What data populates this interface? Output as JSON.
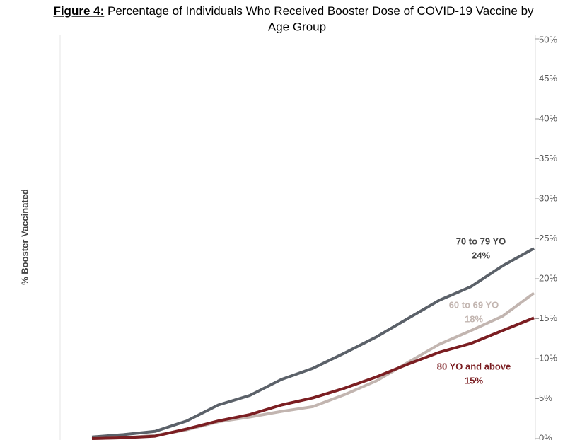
{
  "chart_data": {
    "type": "line",
    "figure_label": "Figure 4:",
    "title": "Percentage of Individuals Who Received Booster Dose of COVID-19 Vaccine by",
    "title_line2": "Age Group",
    "y_label": "% Booster Vaccinated",
    "categories": [
      null,
      null,
      null,
      null,
      null,
      null,
      null,
      null,
      null,
      null,
      null,
      null,
      null,
      null,
      null
    ],
    "series": [
      {
        "name": "70 to 79 YO",
        "color": "#5b6169",
        "values": [
          0.2,
          0.5,
          0.9,
          2.2,
          4.2,
          5.4,
          7.4,
          8.8,
          10.7,
          12.7,
          15.0,
          17.3,
          19.0,
          21.6,
          23.8
        ],
        "value_labels": [
          null,
          null,
          null,
          null,
          null,
          null,
          null,
          null,
          null,
          null,
          null,
          null,
          null,
          null,
          "24%"
        ]
      },
      {
        "name": "60 to 69 YO",
        "color": "#c2b5b0",
        "values": [
          0,
          0.1,
          0.4,
          1.1,
          2.1,
          2.7,
          3.4,
          4.0,
          5.5,
          7.2,
          9.5,
          11.8,
          13.5,
          15.3,
          18.2
        ],
        "value_labels": [
          null,
          null,
          null,
          null,
          null,
          null,
          null,
          null,
          null,
          null,
          null,
          null,
          null,
          null,
          "18%"
        ]
      },
      {
        "name": "80 YO and above",
        "color": "#7b1e22",
        "values": [
          0,
          0.1,
          0.3,
          1.2,
          2.2,
          3.0,
          4.2,
          5.1,
          6.3,
          7.7,
          9.3,
          10.8,
          11.9,
          13.5,
          15.1
        ],
        "value_labels": [
          null,
          null,
          null,
          null,
          null,
          null,
          null,
          null,
          null,
          null,
          null,
          null,
          null,
          null,
          "15%"
        ]
      }
    ],
    "ylim": [
      0,
      50
    ],
    "yticks": [
      {
        "value": 0,
        "label": "0%"
      },
      {
        "value": 5,
        "label": "5%"
      },
      {
        "value": 10,
        "label": "10%"
      },
      {
        "value": 15,
        "label": "15%"
      },
      {
        "value": 20,
        "label": "20%"
      },
      {
        "value": 25,
        "label": "25%"
      },
      {
        "value": 30,
        "label": "30%"
      },
      {
        "value": 35,
        "label": "35%"
      },
      {
        "value": 40,
        "label": "40%"
      },
      {
        "value": 45,
        "label": "45%"
      },
      {
        "value": 50,
        "label": "50%"
      }
    ]
  }
}
